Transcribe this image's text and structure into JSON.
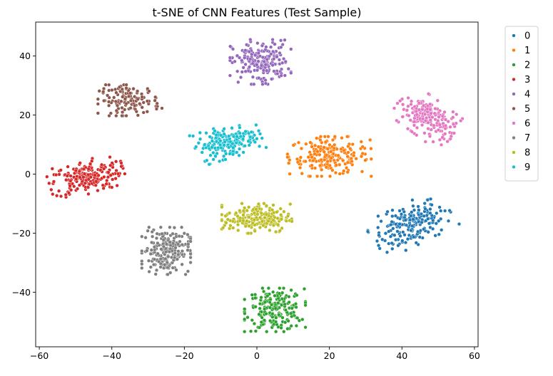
{
  "chart_data": {
    "type": "scatter",
    "title": "t-SNE of CNN Features (Test Sample)",
    "xlabel": "",
    "ylabel": "",
    "xlim": [
      -61,
      61
    ],
    "ylim": [
      -58.5,
      51.5
    ],
    "x_ticks": [
      -60,
      -40,
      -20,
      0,
      20,
      40,
      60
    ],
    "y_ticks": [
      -40,
      -20,
      0,
      20,
      40
    ],
    "x_tick_labels": [
      "−60",
      "−40",
      "−20",
      "0",
      "20",
      "40",
      "60"
    ],
    "y_tick_labels": [
      "−40",
      "−20",
      "0",
      "20",
      "40"
    ],
    "grid": false,
    "legend_position": "outside-right",
    "series": [
      {
        "name": "0",
        "color": "#1f77b4",
        "center": [
          42.5,
          -17
        ],
        "spread": [
          5.5,
          3.3
        ],
        "angle": 30,
        "count": 200
      },
      {
        "name": "1",
        "color": "#ff7f0e",
        "center": [
          20,
          6
        ],
        "spread": [
          5.5,
          3.2
        ],
        "angle": 0,
        "count": 200
      },
      {
        "name": "2",
        "color": "#2ca02c",
        "center": [
          5,
          -46
        ],
        "spread": [
          4,
          3.5
        ],
        "angle": 0,
        "count": 200
      },
      {
        "name": "3",
        "color": "#d62728",
        "center": [
          -47,
          -1
        ],
        "spread": [
          5,
          2.7
        ],
        "angle": 15,
        "count": 200
      },
      {
        "name": "4",
        "color": "#9467bd",
        "center": [
          1,
          38
        ],
        "spread": [
          4,
          3.6
        ],
        "angle": 0,
        "count": 200
      },
      {
        "name": "5",
        "color": "#8c564b",
        "center": [
          -35,
          25
        ],
        "spread": [
          4.2,
          2.5
        ],
        "angle": 0,
        "count": 130
      },
      {
        "name": "6",
        "color": "#e377c2",
        "center": [
          47,
          19
        ],
        "spread": [
          4.5,
          3
        ],
        "angle": -42,
        "count": 200
      },
      {
        "name": "7",
        "color": "#7f7f7f",
        "center": [
          -25,
          -26
        ],
        "spread": [
          3.2,
          3.8
        ],
        "angle": 0,
        "count": 200
      },
      {
        "name": "8",
        "color": "#bcbd22",
        "center": [
          0,
          -15
        ],
        "spread": [
          4.6,
          2.4
        ],
        "angle": 0,
        "count": 200
      },
      {
        "name": "9",
        "color": "#17becf",
        "center": [
          -8,
          11
        ],
        "spread": [
          4.4,
          2.6
        ],
        "angle": 20,
        "count": 200
      }
    ]
  }
}
